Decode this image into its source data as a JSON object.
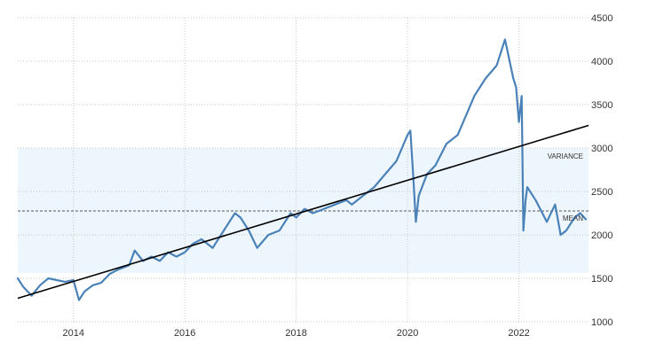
{
  "chart_data": {
    "type": "line",
    "title": "",
    "xlabel": "",
    "ylabel": "",
    "xlim": [
      2013.0,
      2023.25
    ],
    "ylim": [
      1000,
      4500
    ],
    "x_ticks": [
      2014,
      2016,
      2018,
      2020,
      2022
    ],
    "x_tick_labels": [
      "2014",
      "2016",
      "2018",
      "2020",
      "2022"
    ],
    "y_ticks": [
      1000,
      1500,
      2000,
      2500,
      3000,
      3500,
      4000,
      4500
    ],
    "y_tick_labels": [
      "1000",
      "1500",
      "2000",
      "2500",
      "3000",
      "3500",
      "4000",
      "4500"
    ],
    "grid": true,
    "variance_band": {
      "label": "VARIANCE",
      "y_low": 1560,
      "y_high": 3000,
      "color": "#eef6fd"
    },
    "mean_line": {
      "label": "MEAN",
      "y": 2275,
      "color": "#555555"
    },
    "trend_line": {
      "x": [
        2013.0,
        2023.25
      ],
      "y": [
        1270,
        3260
      ],
      "color": "#000000"
    },
    "series": [
      {
        "color": "#4a82b8",
        "x": [
          2013.0,
          2013.1,
          2013.25,
          2013.4,
          2013.55,
          2013.7,
          2013.85,
          2014.0,
          2014.1,
          2014.2,
          2014.35,
          2014.5,
          2014.65,
          2014.8,
          2015.0,
          2015.1,
          2015.25,
          2015.4,
          2015.55,
          2015.7,
          2015.85,
          2016.0,
          2016.15,
          2016.3,
          2016.5,
          2016.7,
          2016.9,
          2017.0,
          2017.15,
          2017.3,
          2017.5,
          2017.7,
          2017.9,
          2018.0,
          2018.15,
          2018.3,
          2018.5,
          2018.7,
          2018.9,
          2019.0,
          2019.2,
          2019.4,
          2019.6,
          2019.8,
          2020.0,
          2020.05,
          2020.1,
          2020.15,
          2020.2,
          2020.35,
          2020.5,
          2020.7,
          2020.9,
          2021.0,
          2021.2,
          2021.4,
          2021.6,
          2021.75,
          2021.9,
          2021.95,
          2022.0,
          2022.05,
          2022.08,
          2022.12,
          2022.15,
          2022.3,
          2022.5,
          2022.65,
          2022.75,
          2022.85,
          2023.0,
          2023.1,
          2023.2
        ],
        "y": [
          1500,
          1400,
          1300,
          1420,
          1500,
          1480,
          1460,
          1480,
          1250,
          1350,
          1420,
          1450,
          1550,
          1600,
          1650,
          1820,
          1700,
          1750,
          1700,
          1800,
          1750,
          1800,
          1900,
          1950,
          1850,
          2050,
          2250,
          2200,
          2050,
          1850,
          2000,
          2050,
          2250,
          2200,
          2300,
          2250,
          2300,
          2350,
          2400,
          2350,
          2450,
          2550,
          2700,
          2850,
          3150,
          3200,
          2700,
          2150,
          2450,
          2700,
          2800,
          3050,
          3150,
          3300,
          3600,
          3800,
          3950,
          4250,
          3800,
          3700,
          3300,
          3600,
          2050,
          2400,
          2550,
          2400,
          2150,
          2350,
          2000,
          2050,
          2200,
          2250,
          2180
        ]
      }
    ]
  }
}
